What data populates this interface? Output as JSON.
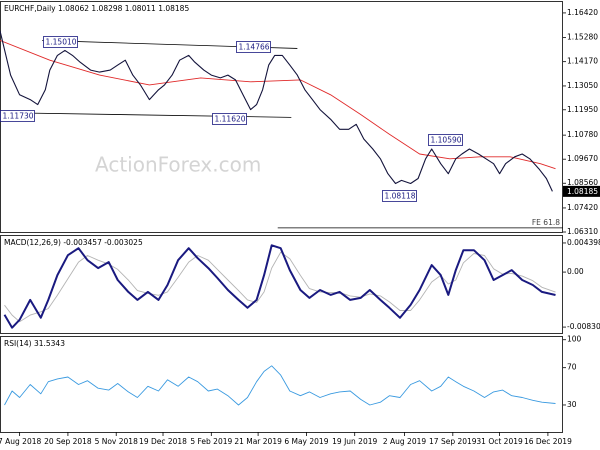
{
  "chart_data": [
    {
      "type": "line",
      "title": "EURCHF,Daily  1.08062 1.08298 1.08011 1.08185",
      "watermark": "ActionForex.com",
      "last_price": 1.08185,
      "x": [
        0,
        7,
        13,
        20,
        25,
        30,
        33,
        38,
        43,
        48,
        53,
        60,
        66,
        73,
        78,
        83,
        88,
        93,
        99,
        105,
        109,
        114,
        119,
        125,
        129,
        135,
        140,
        146,
        151,
        156,
        161,
        166,
        170,
        174,
        178,
        182,
        187,
        192,
        197,
        202,
        207,
        212,
        219,
        225,
        231,
        236,
        241,
        247,
        252,
        257,
        262,
        266,
        272,
        277,
        282,
        286,
        292,
        297,
        302,
        306,
        311,
        317,
        322,
        327,
        331,
        335,
        341,
        346,
        351,
        357,
        362,
        366
      ],
      "series": [
        {
          "name": "close",
          "color": "#14143c",
          "values": [
            1.156,
            1.1355,
            1.1264,
            1.1242,
            1.1219,
            1.1287,
            1.1378,
            1.1446,
            1.1469,
            1.1446,
            1.1415,
            1.1378,
            1.1369,
            1.1378,
            1.1401,
            1.1424,
            1.1355,
            1.131,
            1.1242,
            1.1287,
            1.131,
            1.1355,
            1.1424,
            1.1446,
            1.1415,
            1.1378,
            1.1355,
            1.1342,
            1.1355,
            1.1333,
            1.1264,
            1.1196,
            1.1219,
            1.1287,
            1.1401,
            1.1446,
            1.1446,
            1.1401,
            1.1355,
            1.1287,
            1.1242,
            1.1196,
            1.1151,
            1.1105,
            1.1105,
            1.1128,
            1.106,
            1.1014,
            1.0969,
            1.09,
            1.0855,
            1.0869,
            1.0855,
            1.0878,
            1.0969,
            1.1014,
            1.0946,
            1.09,
            1.0969,
            1.0991,
            1.1014,
            1.0991,
            1.0969,
            1.0946,
            1.09,
            1.0946,
            1.0978,
            1.0991,
            1.0969,
            1.0923,
            1.0878,
            1.08185
          ]
        }
      ],
      "ma": {
        "color": "#e02a2a",
        "x": [
          0,
          33,
          66,
          99,
          133,
          166,
          199,
          219,
          239,
          258,
          278,
          298,
          318,
          338,
          358,
          368
        ],
        "values": [
          1.1515,
          1.1424,
          1.1355,
          1.131,
          1.1342,
          1.1324,
          1.1333,
          1.1264,
          1.1173,
          1.1082,
          1.0991,
          1.0969,
          1.0978,
          1.0978,
          1.0946,
          1.0923
        ]
      },
      "trendlines": [
        {
          "x": [
            28,
            197
          ],
          "y": [
            1.1515,
            1.1478
          ]
        },
        {
          "x": [
            0,
            193
          ],
          "y": [
            1.1182,
            1.116
          ]
        },
        {
          "x": [
            184,
            373
          ],
          "y": [
            1.065,
            1.065
          ],
          "label": "FE 61.8"
        }
      ],
      "annotations": [
        {
          "text": "1.15010"
        },
        {
          "text": "1.14766"
        },
        {
          "text": "1.11730"
        },
        {
          "text": "1.11620"
        },
        {
          "text": "1.10590"
        },
        {
          "text": "1.08118"
        }
      ],
      "xlim": [
        0,
        373
      ],
      "ylim": [
        1.0631,
        1.1697
      ],
      "yticks": [
        {
          "value": 1.1642,
          "label": "1.16420"
        },
        {
          "value": 1.1528,
          "label": "1.15280"
        },
        {
          "value": 1.1417,
          "label": "1.14170"
        },
        {
          "value": 1.1305,
          "label": "1.13050"
        },
        {
          "value": 1.1195,
          "label": "1.11950"
        },
        {
          "value": 1.1078,
          "label": "1.10780"
        },
        {
          "value": 1.0967,
          "label": "1.09670"
        },
        {
          "value": 1.0856,
          "label": "1.08560"
        },
        {
          "value": 1.0742,
          "label": "1.07420"
        },
        {
          "value": 1.0631,
          "label": "1.06310"
        }
      ]
    },
    {
      "type": "line",
      "title": "MACD(12,26,9) -0.003457 -0.003025",
      "x": [
        3,
        8,
        13,
        20,
        27,
        32,
        38,
        45,
        52,
        58,
        65,
        72,
        78,
        85,
        91,
        98,
        105,
        111,
        118,
        125,
        131,
        138,
        144,
        151,
        158,
        164,
        170,
        175,
        180,
        186,
        192,
        199,
        205,
        212,
        219,
        225,
        232,
        239,
        245,
        252,
        258,
        265,
        272,
        278,
        286,
        292,
        297,
        302,
        307,
        314,
        321,
        327,
        333,
        339,
        346,
        353,
        359,
        368
      ],
      "series": [
        {
          "name": "MACD",
          "color": "#1a1a80",
          "values": [
            -0.00645,
            -0.0084,
            -0.0072,
            -0.0042,
            -0.0069,
            -0.0042,
            -0.00045,
            0.00255,
            0.0036,
            0.0018,
            0.0006,
            0.0015,
            -0.0012,
            -0.003,
            -0.0042,
            -0.003,
            -0.0042,
            -0.00195,
            0.0018,
            0.0036,
            0.0021,
            0.0006,
            -0.0009,
            -0.0027,
            -0.0042,
            -0.0054,
            -0.0042,
            -0.00045,
            0.00405,
            0.0036,
            0.0003,
            -0.0027,
            -0.0039,
            -0.0027,
            -0.00345,
            -0.003,
            -0.0042,
            -0.0039,
            -0.0027,
            -0.0042,
            -0.0054,
            -0.0069,
            -0.00495,
            -0.0027,
            0.00105,
            -0.00045,
            -0.00345,
            0.0003,
            0.0033,
            0.0033,
            0.0018,
            -0.0012,
            -0.00045,
            0.0003,
            -0.0012,
            -0.00195,
            -0.003,
            -0.003457
          ]
        },
        {
          "name": "Signal",
          "color": "#b4b4b4",
          "values": [
            -0.005,
            -0.0065,
            -0.0075,
            -0.0065,
            -0.006,
            -0.0055,
            -0.0035,
            -0.001,
            0.0015,
            0.0025,
            0.0018,
            0.0012,
            0.0004,
            -0.0012,
            -0.0028,
            -0.0032,
            -0.0035,
            -0.003,
            -0.0008,
            0.0015,
            0.0025,
            0.0018,
            0.0004,
            -0.0012,
            -0.0028,
            -0.0042,
            -0.0046,
            -0.003,
            0.0006,
            0.003,
            0.002,
            -0.0005,
            -0.0025,
            -0.003,
            -0.0031,
            -0.0031,
            -0.0036,
            -0.0038,
            -0.0033,
            -0.0036,
            -0.0045,
            -0.0058,
            -0.0058,
            -0.0042,
            -0.0015,
            -0.0005,
            -0.0018,
            -0.0012,
            0.0014,
            0.0028,
            0.0025,
            0.0005,
            -0.0003,
            -0.0002,
            -0.0006,
            -0.0013,
            -0.0023,
            -0.003025
          ]
        }
      ],
      "xlim": [
        0,
        373
      ],
      "ylim": [
        -0.0092,
        0.0056
      ],
      "yticks": [
        0.004398,
        {
          "value": 0,
          "label": "0.00"
        },
        -0.008306
      ]
    },
    {
      "type": "line",
      "title": "RSI(14) 31.5343",
      "x": [
        3,
        8,
        13,
        20,
        27,
        32,
        38,
        45,
        52,
        58,
        65,
        72,
        78,
        85,
        91,
        98,
        105,
        111,
        118,
        125,
        131,
        138,
        144,
        151,
        158,
        164,
        170,
        175,
        180,
        186,
        192,
        199,
        205,
        212,
        219,
        225,
        232,
        239,
        245,
        252,
        258,
        265,
        272,
        278,
        286,
        292,
        297,
        302,
        307,
        314,
        321,
        327,
        333,
        339,
        346,
        353,
        359,
        368
      ],
      "series": [
        {
          "name": "RSI",
          "color": "#3a9ae0",
          "values": [
            30,
            45,
            38,
            52,
            42,
            55,
            58,
            60,
            52,
            56,
            48,
            46,
            53,
            44,
            38,
            50,
            45,
            57,
            50,
            60,
            55,
            45,
            47,
            40,
            30,
            38,
            55,
            66,
            72,
            62,
            45,
            40,
            44,
            38,
            42,
            44,
            45,
            36,
            30,
            33,
            40,
            38,
            52,
            56,
            45,
            50,
            60,
            55,
            50,
            45,
            38,
            44,
            46,
            40,
            38,
            35,
            33,
            31.5343
          ]
        }
      ],
      "xlim": [
        0,
        373
      ],
      "ylim": [
        1,
        104
      ],
      "yticks": [
        100,
        70,
        30
      ],
      "xticks": [
        {
          "value": 13,
          "label": "7 Aug 2018"
        },
        {
          "value": 45,
          "label": "20 Sep 2018"
        },
        {
          "value": 77,
          "label": "5 Nov 2018"
        },
        {
          "value": 108,
          "label": "19 Dec 2018"
        },
        {
          "value": 140,
          "label": "5 Feb 2019"
        },
        {
          "value": 171,
          "label": "21 Mar 2019"
        },
        {
          "value": 203,
          "label": "6 May 2019"
        },
        {
          "value": 235,
          "label": "19 Jun 2019"
        },
        {
          "value": 268,
          "label": "2 Aug 2019"
        },
        {
          "value": 300,
          "label": "17 Sep 2019"
        },
        {
          "value": 331,
          "label": "31 Oct 2019"
        },
        {
          "value": 363,
          "label": "16 Dec 2019"
        }
      ]
    }
  ]
}
